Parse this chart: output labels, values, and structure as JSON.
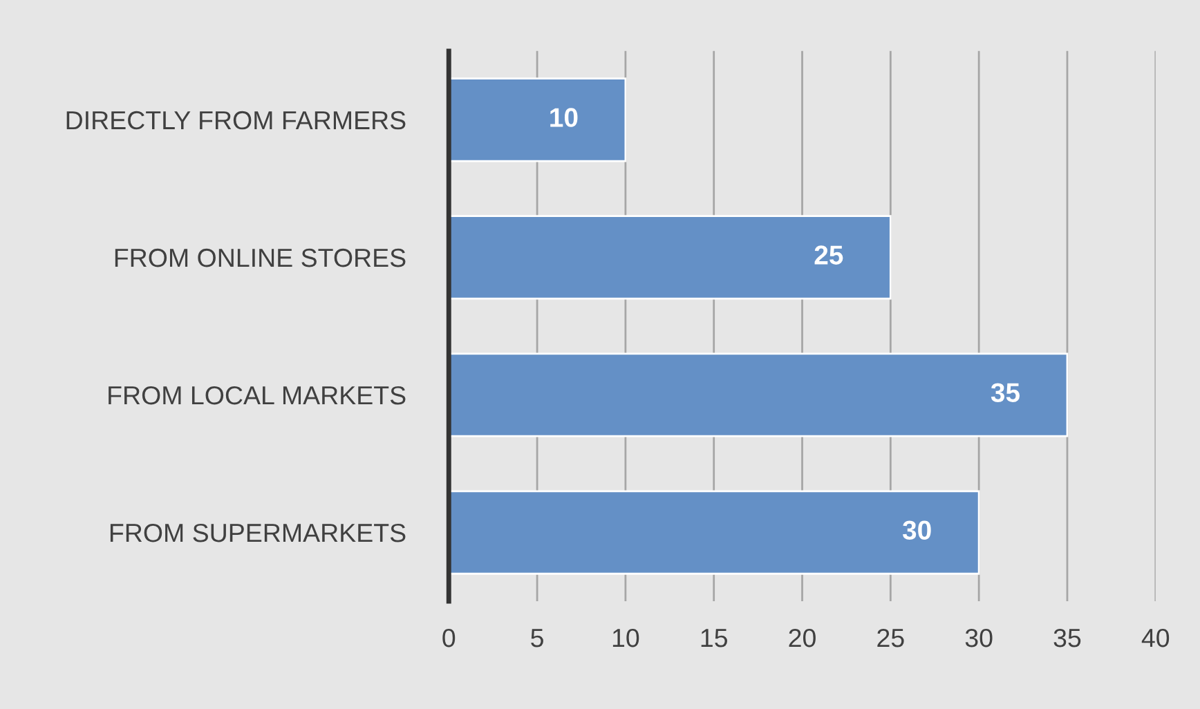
{
  "chart_data": {
    "type": "bar",
    "orientation": "horizontal",
    "categories": [
      "DIRECTLY FROM FARMERS",
      "FROM ONLINE STORES",
      "FROM LOCAL MARKETS",
      "FROM SUPERMARKETS"
    ],
    "values": [
      10,
      25,
      35,
      30
    ],
    "color": "#6490c6",
    "xlim": [
      0,
      40
    ],
    "xticks": [
      0,
      5,
      10,
      15,
      20,
      25,
      30,
      35,
      40
    ],
    "grid": "x",
    "data_labels": true
  }
}
